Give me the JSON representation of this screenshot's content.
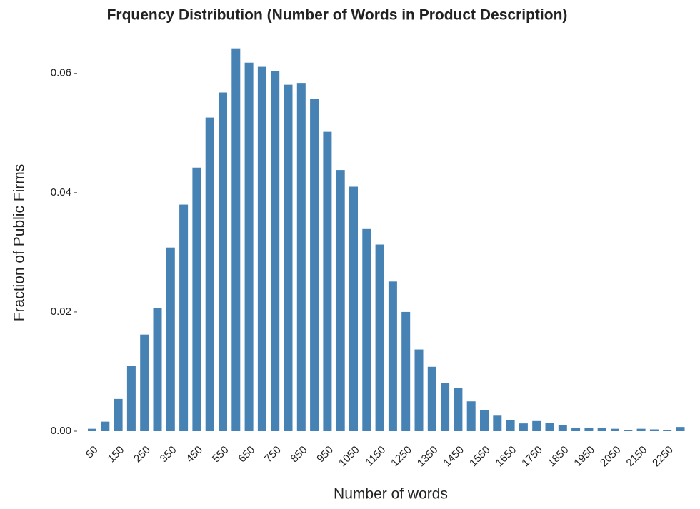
{
  "chart_data": {
    "type": "bar",
    "title": "Frquency Distribution (Number of Words in Product Description)",
    "x_label": "Number of words",
    "y_label": "Fraction of Public Firms",
    "categories": [
      "50",
      null,
      "150",
      null,
      "250",
      null,
      "350",
      null,
      "450",
      null,
      "550",
      null,
      "650",
      null,
      "750",
      null,
      "850",
      null,
      "950",
      null,
      "1050",
      null,
      "1150",
      null,
      "1250",
      null,
      "1350",
      null,
      "1450",
      null,
      "1550",
      null,
      "1650",
      null,
      "1750",
      null,
      "1850",
      null,
      "1950",
      null,
      "2050",
      null,
      "2150",
      null,
      "2250",
      null
    ],
    "values": [
      0.0004,
      0.0016,
      0.0054,
      0.011,
      0.0162,
      0.0206,
      0.0308,
      0.038,
      0.0442,
      0.0526,
      0.0568,
      0.0642,
      0.0618,
      0.0611,
      0.0604,
      0.0581,
      0.0584,
      0.0557,
      0.0502,
      0.0438,
      0.041,
      0.0339,
      0.0313,
      0.0251,
      0.02,
      0.0137,
      0.0108,
      0.0081,
      0.0072,
      0.005,
      0.0035,
      0.0026,
      0.0019,
      0.0013,
      0.0017,
      0.0014,
      0.001,
      0.0006,
      0.0006,
      0.0005,
      0.0004,
      0.0002,
      0.0004,
      0.0003,
      0.0002,
      0.0007
    ],
    "color": "#4682b4",
    "ylim": [
      0,
      0.065
    ],
    "yticks": [
      {
        "value": 0,
        "label": "0.00"
      },
      {
        "value": 0.02,
        "label": "0.02"
      },
      {
        "value": 0.04,
        "label": "0.04"
      },
      {
        "value": 0.06,
        "label": "0.06"
      }
    ],
    "grid": false
  }
}
